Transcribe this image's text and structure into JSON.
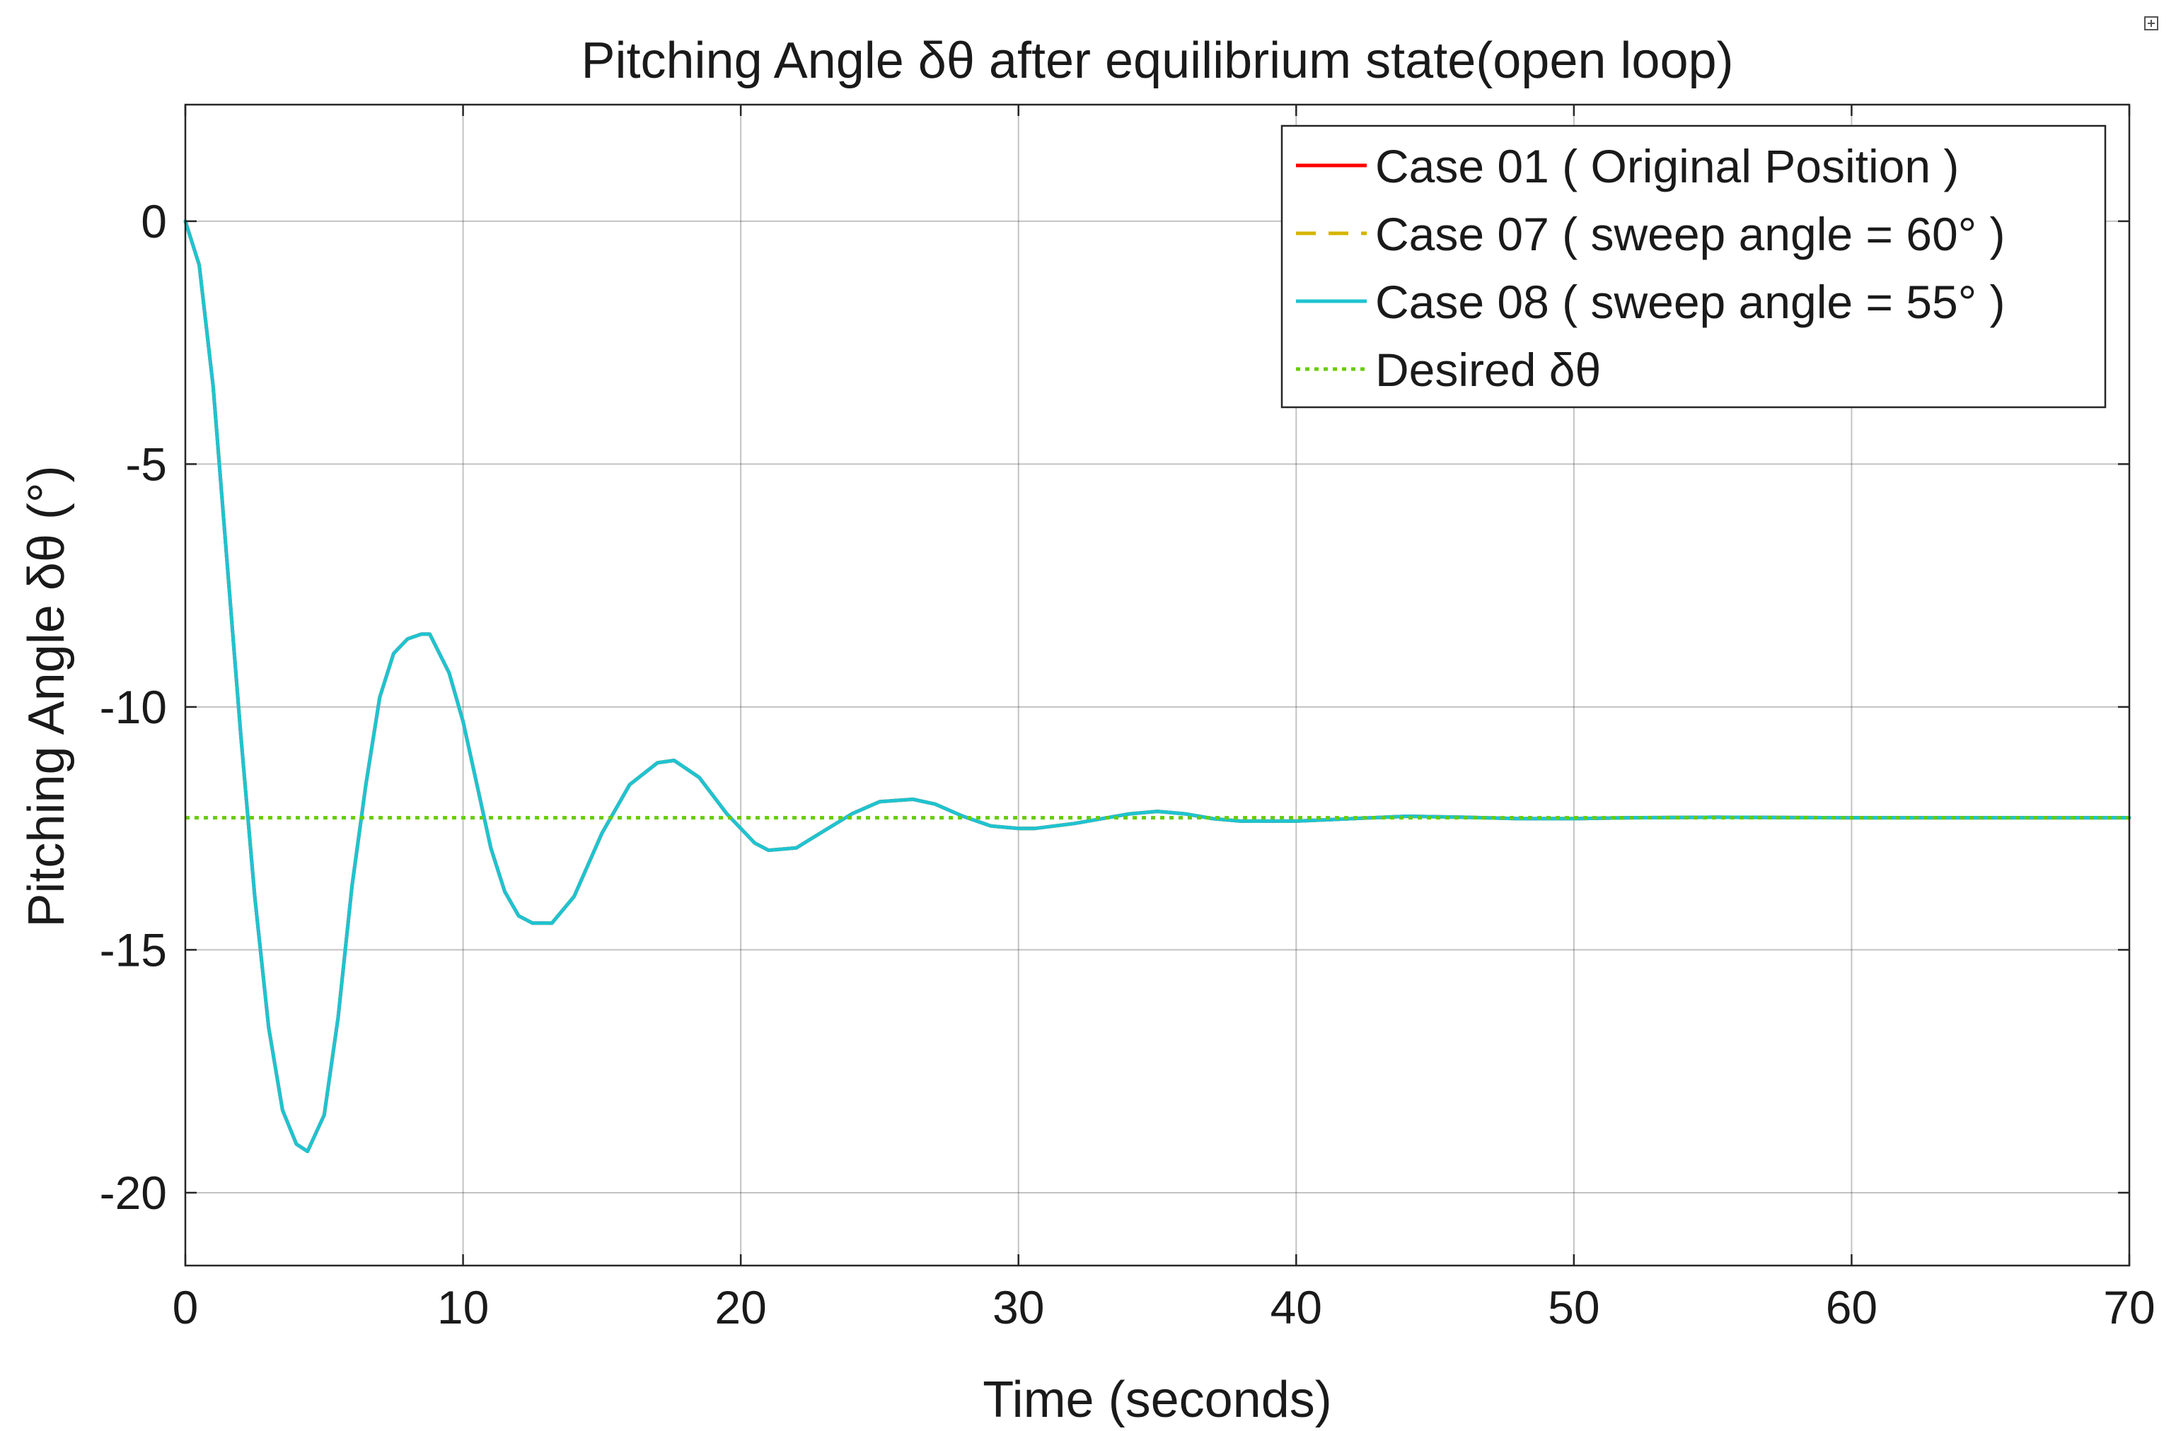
{
  "chart_data": {
    "type": "line",
    "title": "Pitching Angle δθ after equilibrium state(open loop)",
    "xlabel": "Time (seconds)",
    "ylabel": "Pitching Angle δθ (°)",
    "xlim": [
      0,
      70
    ],
    "ylim": [
      -21.5,
      2.4
    ],
    "xticks": [
      0,
      10,
      20,
      30,
      40,
      50,
      60,
      70
    ],
    "xtick_labels": [
      "0",
      "10",
      "20",
      "30",
      "40",
      "50",
      "60",
      "70"
    ],
    "yticks": [
      0,
      -5,
      -10,
      -15,
      -20
    ],
    "ytick_labels": [
      "0",
      "-5",
      "-10",
      "-15",
      "-20"
    ],
    "grid": true,
    "legend_position": "top-right",
    "series": [
      {
        "name": "Case 01 ( Original Position )",
        "color": "#ff0000",
        "style": "solid",
        "x": [
          0,
          0.5,
          1,
          1.5,
          2,
          2.5,
          3,
          3.5,
          4,
          4.4,
          5,
          5.5,
          6,
          6.5,
          7,
          7.5,
          8,
          8.5,
          8.8,
          9.5,
          10,
          10.5,
          11,
          11.5,
          12,
          12.5,
          13.2,
          14,
          15,
          16,
          17,
          17.6,
          18.5,
          19.5,
          20.5,
          21,
          22,
          23,
          24,
          25,
          26.2,
          27,
          28,
          29,
          30,
          30.6,
          32,
          33,
          34,
          35,
          36,
          37,
          38,
          39.3,
          40,
          42,
          44,
          46,
          48,
          50,
          52,
          55,
          60,
          65,
          70
        ],
        "values": [
          0,
          -0.9,
          -3.4,
          -7,
          -10.6,
          -13.9,
          -16.6,
          -18.3,
          -19.0,
          -19.15,
          -18.4,
          -16.4,
          -13.7,
          -11.6,
          -9.8,
          -8.9,
          -8.6,
          -8.5,
          -8.5,
          -9.3,
          -10.3,
          -11.6,
          -12.9,
          -13.8,
          -14.3,
          -14.45,
          -14.45,
          -13.9,
          -12.6,
          -11.6,
          -11.15,
          -11.1,
          -11.45,
          -12.2,
          -12.8,
          -12.95,
          -12.9,
          -12.55,
          -12.2,
          -11.95,
          -11.9,
          -12.0,
          -12.25,
          -12.45,
          -12.5,
          -12.5,
          -12.4,
          -12.3,
          -12.2,
          -12.15,
          -12.2,
          -12.3,
          -12.35,
          -12.35,
          -12.35,
          -12.3,
          -12.25,
          -12.27,
          -12.3,
          -12.3,
          -12.28,
          -12.27,
          -12.28,
          -12.28,
          -12.28
        ]
      },
      {
        "name": "Case 07 ( sweep angle = 60° )",
        "color": "#d4b400",
        "style": "dashed",
        "x": [
          0,
          0.5,
          1,
          1.5,
          2,
          2.5,
          3,
          3.5,
          4,
          4.4,
          5,
          5.5,
          6,
          6.5,
          7,
          7.5,
          8,
          8.5,
          8.8,
          9.5,
          10,
          10.5,
          11,
          11.5,
          12,
          12.5,
          13.2,
          14,
          15,
          16,
          17,
          17.6,
          18.5,
          19.5,
          20.5,
          21,
          22,
          23,
          24,
          25,
          26.2,
          27,
          28,
          29,
          30,
          30.6,
          32,
          33,
          34,
          35,
          36,
          37,
          38,
          39.3,
          40,
          42,
          44,
          46,
          48,
          50,
          52,
          55,
          60,
          65,
          70
        ],
        "values": [
          0,
          -0.9,
          -3.4,
          -7,
          -10.6,
          -13.9,
          -16.6,
          -18.3,
          -19.0,
          -19.15,
          -18.4,
          -16.4,
          -13.7,
          -11.6,
          -9.8,
          -8.9,
          -8.6,
          -8.5,
          -8.5,
          -9.3,
          -10.3,
          -11.6,
          -12.9,
          -13.8,
          -14.3,
          -14.45,
          -14.45,
          -13.9,
          -12.6,
          -11.6,
          -11.15,
          -11.1,
          -11.45,
          -12.2,
          -12.8,
          -12.95,
          -12.9,
          -12.55,
          -12.2,
          -11.95,
          -11.9,
          -12.0,
          -12.25,
          -12.45,
          -12.5,
          -12.5,
          -12.4,
          -12.3,
          -12.2,
          -12.15,
          -12.2,
          -12.3,
          -12.35,
          -12.35,
          -12.35,
          -12.3,
          -12.25,
          -12.27,
          -12.3,
          -12.3,
          -12.28,
          -12.27,
          -12.28,
          -12.28,
          -12.28
        ]
      },
      {
        "name": "Case 08 ( sweep angle = 55° )",
        "color": "#1fc3d0",
        "style": "solid",
        "x": [
          0,
          0.5,
          1,
          1.5,
          2,
          2.5,
          3,
          3.5,
          4,
          4.4,
          5,
          5.5,
          6,
          6.5,
          7,
          7.5,
          8,
          8.5,
          8.8,
          9.5,
          10,
          10.5,
          11,
          11.5,
          12,
          12.5,
          13.2,
          14,
          15,
          16,
          17,
          17.6,
          18.5,
          19.5,
          20.5,
          21,
          22,
          23,
          24,
          25,
          26.2,
          27,
          28,
          29,
          30,
          30.6,
          32,
          33,
          34,
          35,
          36,
          37,
          38,
          39.3,
          40,
          42,
          44,
          46,
          48,
          50,
          52,
          55,
          60,
          65,
          70
        ],
        "values": [
          0,
          -0.9,
          -3.4,
          -7,
          -10.6,
          -13.9,
          -16.6,
          -18.3,
          -19.0,
          -19.15,
          -18.4,
          -16.4,
          -13.7,
          -11.6,
          -9.8,
          -8.9,
          -8.6,
          -8.5,
          -8.5,
          -9.3,
          -10.3,
          -11.6,
          -12.9,
          -13.8,
          -14.3,
          -14.45,
          -14.45,
          -13.9,
          -12.6,
          -11.6,
          -11.15,
          -11.1,
          -11.45,
          -12.2,
          -12.8,
          -12.95,
          -12.9,
          -12.55,
          -12.2,
          -11.95,
          -11.9,
          -12.0,
          -12.25,
          -12.45,
          -12.5,
          -12.5,
          -12.4,
          -12.3,
          -12.2,
          -12.15,
          -12.2,
          -12.3,
          -12.35,
          -12.35,
          -12.35,
          -12.3,
          -12.25,
          -12.27,
          -12.3,
          -12.3,
          -12.28,
          -12.27,
          -12.28,
          -12.28,
          -12.28
        ]
      },
      {
        "name": "Desired δθ",
        "color": "#66cc00",
        "style": "dotted",
        "x": [
          0,
          70
        ],
        "values": [
          -12.28,
          -12.28
        ]
      }
    ]
  }
}
